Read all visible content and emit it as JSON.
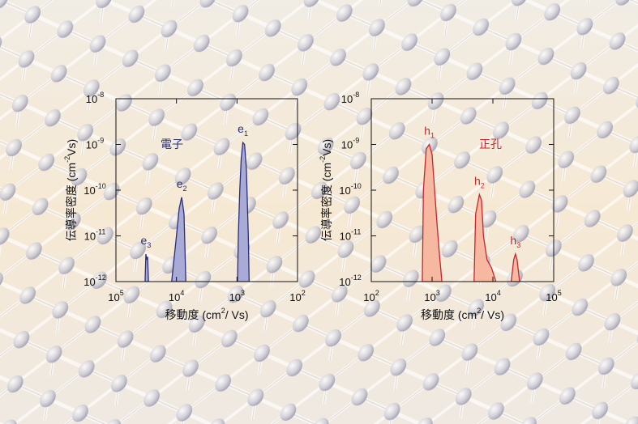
{
  "chart_data": [
    {
      "type": "area",
      "log_x": true,
      "log_y": true,
      "annotation": "電子",
      "xlabel": {
        "text": "移動度 (cm",
        "sup": "2",
        "tail": "/ Vs)"
      },
      "ylabel": {
        "text": "伝導率密度 (cm",
        "sup": "-2",
        "tail": "Vs)"
      },
      "xlim": [
        100000,
        100
      ],
      "ylim": [
        1e-12,
        1e-08
      ],
      "xticks": [
        {
          "value": 100000,
          "label": "10",
          "exponent": "5"
        },
        {
          "value": 10000,
          "label": "10",
          "exponent": "4"
        },
        {
          "value": 1000,
          "label": "10",
          "exponent": "3"
        },
        {
          "value": 100,
          "label": "10",
          "exponent": "2"
        }
      ],
      "yticks": [
        {
          "value": 1e-08,
          "label": "10",
          "exponent": "-8"
        },
        {
          "value": 1e-09,
          "label": "10",
          "exponent": "-9"
        },
        {
          "value": 1e-10,
          "label": "10",
          "exponent": "-10"
        },
        {
          "value": 1e-11,
          "label": "10",
          "exponent": "-11"
        },
        {
          "value": 1e-12,
          "label": "10",
          "exponent": "-12"
        }
      ],
      "color": "#2b2e7c",
      "fill": "#a9abd6",
      "series": [
        {
          "name": "e",
          "sub": "1",
          "x": [
            980,
            950,
            900,
            850,
            800,
            750,
            700,
            650,
            630
          ],
          "values": [
            1e-12,
            1e-11,
            1e-10,
            5e-10,
            1.1e-09,
            1e-09,
            3e-10,
            1e-11,
            1e-12
          ]
        },
        {
          "name": "e",
          "sub": "2",
          "x": [
            12000,
            11000,
            10000,
            9000,
            8200,
            7500,
            7000
          ],
          "values": [
            1e-12,
            3e-12,
            1e-11,
            4e-11,
            7e-11,
            3e-11,
            1e-12
          ]
        },
        {
          "name": "e",
          "sub": "3",
          "x": [
            33000,
            32000,
            31000,
            30000,
            29000
          ],
          "values": [
            1e-12,
            4e-12,
            3e-12,
            3.5e-12,
            1e-12
          ]
        }
      ]
    },
    {
      "type": "area",
      "log_x": true,
      "log_y": true,
      "annotation": "正孔",
      "xlabel": {
        "text": "移動度 (cm",
        "sup": "2",
        "tail": "/ Vs)"
      },
      "ylabel": {
        "text": "伝導率密度 (cm",
        "sup": "-2",
        "tail": "Vs)"
      },
      "xlim": [
        100,
        100000
      ],
      "ylim": [
        1e-12,
        1e-08
      ],
      "xticks": [
        {
          "value": 100,
          "label": "10",
          "exponent": "2"
        },
        {
          "value": 1000,
          "label": "10",
          "exponent": "3"
        },
        {
          "value": 10000,
          "label": "10",
          "exponent": "4"
        },
        {
          "value": 100000,
          "label": "10",
          "exponent": "5"
        }
      ],
      "yticks": [
        {
          "value": 1e-08,
          "label": "10",
          "exponent": "-8"
        },
        {
          "value": 1e-09,
          "label": "10",
          "exponent": "-9"
        },
        {
          "value": 1e-10,
          "label": "10",
          "exponent": "-10"
        },
        {
          "value": 1e-11,
          "label": "10",
          "exponent": "-11"
        },
        {
          "value": 1e-12,
          "label": "10",
          "exponent": "-12"
        }
      ],
      "color": "#c4262e",
      "fill": "#f6b8a0",
      "series": [
        {
          "name": "h",
          "sub": "1",
          "x": [
            690,
            720,
            800,
            900,
            1000,
            1100,
            1200,
            1300,
            1450
          ],
          "values": [
            1e-12,
            1e-10,
            8e-10,
            1e-09,
            6e-10,
            1e-10,
            2e-11,
            5e-12,
            1e-12
          ]
        },
        {
          "name": "h",
          "sub": "2",
          "x": [
            4900,
            5200,
            6000,
            6500,
            7000,
            8000,
            9500,
            11200
          ],
          "values": [
            1e-12,
            3e-11,
            8e-11,
            6e-11,
            1e-11,
            3e-12,
            2e-12,
            1e-12
          ]
        },
        {
          "name": "h",
          "sub": "3",
          "x": [
            20000,
            22000,
            23500,
            25000,
            27500
          ],
          "values": [
            1e-12,
            3e-12,
            4e-12,
            3e-12,
            1e-12
          ]
        }
      ]
    }
  ]
}
